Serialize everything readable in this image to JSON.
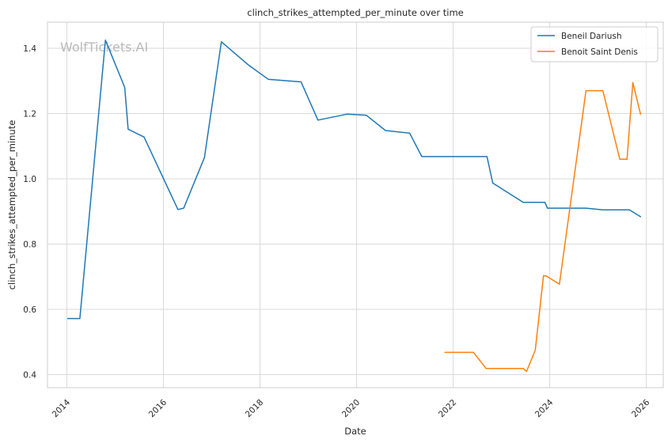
{
  "chart_data": {
    "type": "line",
    "title": "clinch_strikes_attempted_per_minute over time",
    "xlabel": "Date",
    "ylabel": "clinch_strikes_attempted_per_minute",
    "watermark": "WolfTickets.AI",
    "xlim": [
      2013.6,
      2026.35
    ],
    "ylim": [
      0.36,
      1.48
    ],
    "x_ticks": [
      2014,
      2016,
      2018,
      2020,
      2022,
      2024,
      2026
    ],
    "x_tick_labels": [
      "2014",
      "2016",
      "2018",
      "2020",
      "2022",
      "2024",
      "2026"
    ],
    "y_ticks": [
      0.4,
      0.6,
      0.8,
      1.0,
      1.2,
      1.4
    ],
    "y_tick_labels": [
      "0.4",
      "0.6",
      "0.8",
      "1.0",
      "1.2",
      "1.4"
    ],
    "grid": true,
    "legend_position": "top-right",
    "series": [
      {
        "name": "Beneil Dariush",
        "color": "#1f77b4",
        "points": [
          [
            2014.02,
            0.572
          ],
          [
            2014.27,
            0.572
          ],
          [
            2014.8,
            1.425
          ],
          [
            2015.2,
            1.28
          ],
          [
            2015.27,
            1.152
          ],
          [
            2015.6,
            1.128
          ],
          [
            2016.3,
            0.906
          ],
          [
            2016.42,
            0.91
          ],
          [
            2016.85,
            1.065
          ],
          [
            2017.2,
            1.42
          ],
          [
            2017.75,
            1.35
          ],
          [
            2018.17,
            1.305
          ],
          [
            2018.85,
            1.297
          ],
          [
            2019.2,
            1.18
          ],
          [
            2019.8,
            1.198
          ],
          [
            2020.2,
            1.195
          ],
          [
            2020.6,
            1.148
          ],
          [
            2021.1,
            1.14
          ],
          [
            2021.35,
            1.068
          ],
          [
            2022.7,
            1.068
          ],
          [
            2022.82,
            0.987
          ],
          [
            2023.45,
            0.928
          ],
          [
            2023.9,
            0.928
          ],
          [
            2023.95,
            0.91
          ],
          [
            2024.75,
            0.91
          ],
          [
            2025.1,
            0.905
          ],
          [
            2025.65,
            0.905
          ],
          [
            2025.88,
            0.884
          ]
        ]
      },
      {
        "name": "Benoit Saint Denis",
        "color": "#ff7f0e",
        "points": [
          [
            2021.83,
            0.468
          ],
          [
            2022.42,
            0.468
          ],
          [
            2022.68,
            0.419
          ],
          [
            2023.45,
            0.419
          ],
          [
            2023.52,
            0.41
          ],
          [
            2023.7,
            0.475
          ],
          [
            2023.87,
            0.703
          ],
          [
            2023.93,
            0.702
          ],
          [
            2024.2,
            0.677
          ],
          [
            2024.75,
            1.27
          ],
          [
            2025.1,
            1.27
          ],
          [
            2025.45,
            1.06
          ],
          [
            2025.6,
            1.06
          ],
          [
            2025.72,
            1.295
          ],
          [
            2025.88,
            1.198
          ]
        ]
      }
    ]
  }
}
